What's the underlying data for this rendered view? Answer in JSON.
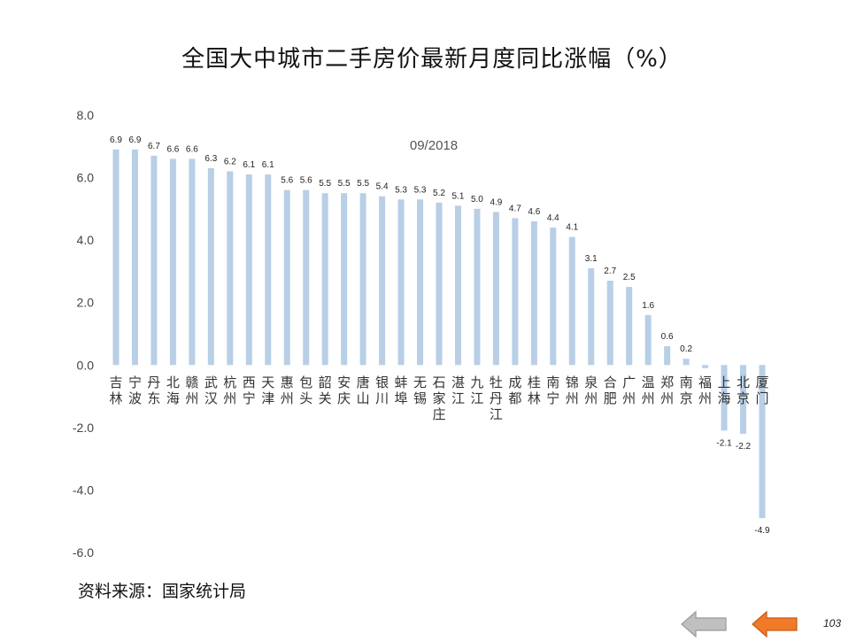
{
  "title": "全国大中城市二手房价最新月度同比涨幅（%）",
  "source": "资料来源：国家统计局",
  "page_number": "103",
  "nav": {
    "prev_icon": "arrow-left-gray-icon",
    "next_icon": "arrow-left-orange-icon"
  },
  "colors": {
    "bar": "#b8cfe6",
    "prev_arrow": "#c0c0c0",
    "next_arrow": "#f07a28"
  },
  "chart_data": {
    "type": "bar",
    "annotation": "09/2018",
    "categories": [
      "吉林",
      "宁波",
      "丹东",
      "北海",
      "赣州",
      "武汉",
      "杭州",
      "西宁",
      "天津",
      "惠州",
      "包头",
      "韶关",
      "安庆",
      "唐山",
      "银川",
      "蚌埠",
      "无锡",
      "石家庄",
      "湛江",
      "九江",
      "牡丹江",
      "成都",
      "桂林",
      "南宁",
      "锦州",
      "泉州",
      "合肥",
      "广州",
      "温州",
      "郑州",
      "南京",
      "福州",
      "上海",
      "北京",
      "厦门"
    ],
    "values": [
      6.9,
      6.9,
      6.7,
      6.6,
      6.6,
      6.3,
      6.2,
      6.1,
      6.1,
      5.6,
      5.6,
      5.5,
      5.5,
      5.5,
      5.4,
      5.3,
      5.3,
      5.2,
      5.1,
      5.0,
      4.9,
      4.7,
      4.6,
      4.4,
      4.1,
      3.1,
      2.7,
      2.5,
      1.6,
      0.6,
      0.2,
      -0.1,
      -2.1,
      -2.2,
      -4.9
    ],
    "value_labels": [
      "6.9",
      "6.9",
      "6.7",
      "6.6",
      "6.6",
      "6.3",
      "6.2",
      "6.1",
      "6.1",
      "5.6",
      "5.6",
      "5.5",
      "5.5",
      "5.5",
      "5.4",
      "5.3",
      "5.3",
      "5.2",
      "5.1",
      "5.0",
      "4.9",
      "4.7",
      "4.6",
      "4.4",
      "4.1",
      "3.1",
      "2.7",
      "2.5",
      "1.6",
      "0.6",
      "0.2",
      "",
      "-2.1",
      "-2.2",
      "-4.9"
    ],
    "yticks": [
      "8.0",
      "6.0",
      "4.0",
      "2.0",
      "0.0",
      "-2.0",
      "-4.0",
      "-6.0"
    ],
    "ylim": [
      -6,
      8
    ],
    "grid": false,
    "legend": "none"
  }
}
